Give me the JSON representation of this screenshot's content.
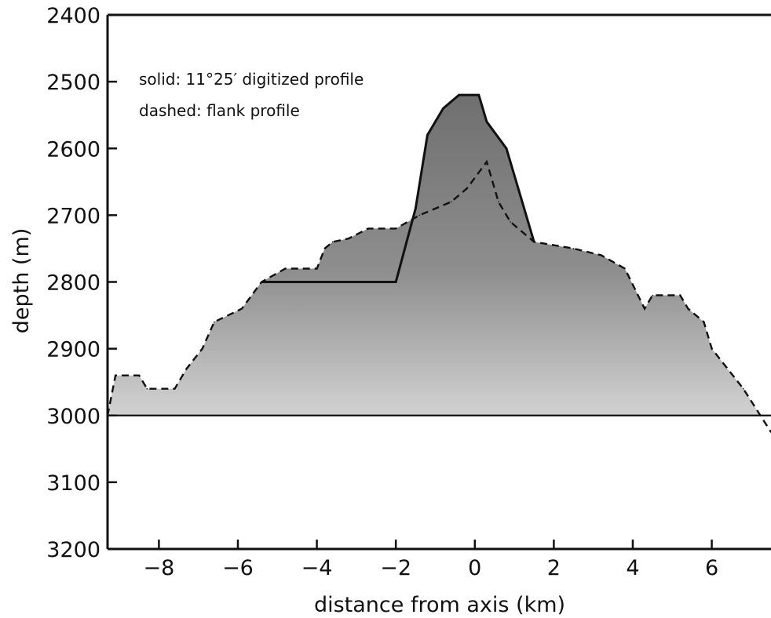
{
  "chart_data": {
    "type": "area",
    "title": "",
    "xlabel": "distance from axis (km)",
    "ylabel": "depth (m)",
    "xlim": [
      -9.3,
      7.5
    ],
    "ylim": [
      2400,
      3200
    ],
    "y_inverted": true,
    "grid": false,
    "x_ticks": [
      -8,
      -6,
      -4,
      -2,
      0,
      2,
      4,
      6
    ],
    "x_tick_labels": [
      "−8",
      "−6",
      "−4",
      "−2",
      "0",
      "2",
      "4",
      "6"
    ],
    "y_ticks": [
      2400,
      2500,
      2600,
      2700,
      2800,
      2900,
      3000,
      3100,
      3200
    ],
    "y_tick_labels": [
      "2400",
      "2500",
      "2600",
      "2700",
      "2800",
      "2900",
      "3000",
      "3100",
      "3200"
    ],
    "baseline_depth": 3000,
    "annotations": [
      "solid: 11°25′ digitized profile",
      "dashed: flank profile"
    ],
    "fill_color": "#8a8a8a",
    "series": [
      {
        "style": "solid",
        "x": [
          -5.4,
          -2.0,
          -1.5,
          -1.2,
          -0.8,
          -0.4,
          0.1,
          0.3,
          0.8,
          1.5
        ],
        "y": [
          2800,
          2800,
          2690,
          2580,
          2540,
          2520,
          2520,
          2560,
          2600,
          2740
        ]
      },
      {
        "style": "dashed",
        "x": [
          -9.3,
          -9.1,
          -8.5,
          -8.3,
          -7.6,
          -7.3,
          -6.9,
          -6.6,
          -5.9,
          -5.4,
          -4.8,
          -4.0,
          -3.8,
          -3.6,
          -3.2,
          -2.7,
          -2.0,
          -1.4,
          -0.6,
          -0.2,
          0.3,
          0.6,
          0.9,
          1.5,
          2.5,
          3.2,
          3.8,
          4.3,
          4.5,
          5.2,
          5.4,
          5.8,
          6.0,
          6.8,
          7.5
        ],
        "y": [
          3000,
          2940,
          2940,
          2960,
          2960,
          2930,
          2900,
          2860,
          2840,
          2800,
          2780,
          2780,
          2750,
          2740,
          2735,
          2720,
          2720,
          2700,
          2680,
          2660,
          2620,
          2680,
          2710,
          2740,
          2750,
          2760,
          2780,
          2840,
          2820,
          2820,
          2840,
          2860,
          2900,
          2960,
          3025
        ]
      }
    ]
  }
}
